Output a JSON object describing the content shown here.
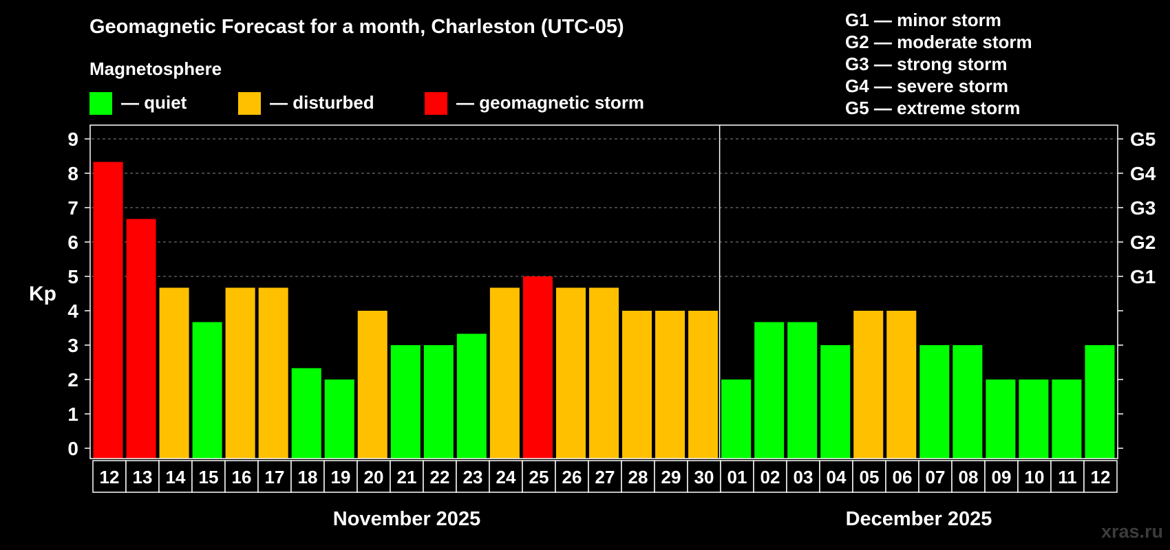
{
  "chart_data": {
    "type": "bar",
    "title": "Geomagnetic Forecast for a month, Charleston (UTC-05)",
    "legend_title": "Magnetosphere",
    "legend": [
      {
        "key": "quiet",
        "label": "— quiet",
        "color": "#00ff00"
      },
      {
        "key": "disturbed",
        "label": "— disturbed",
        "color": "#ffc000"
      },
      {
        "key": "storm",
        "label": "— geomagnetic storm",
        "color": "#ff0000"
      }
    ],
    "storm_levels": [
      {
        "level": "G1",
        "text": "G1 — minor storm",
        "kp": 5
      },
      {
        "level": "G2",
        "text": "G2 — moderate storm",
        "kp": 6
      },
      {
        "level": "G3",
        "text": "G3 — strong storm",
        "kp": 7
      },
      {
        "level": "G4",
        "text": "G4 — severe storm",
        "kp": 8
      },
      {
        "level": "G5",
        "text": "G5 — extreme storm",
        "kp": 9
      }
    ],
    "ylabel": "Kp",
    "ylim": [
      0,
      9
    ],
    "yticks": [
      0,
      1,
      2,
      3,
      4,
      5,
      6,
      7,
      8,
      9
    ],
    "grid": "dashed at Kp 5-9",
    "categories": [
      "12",
      "13",
      "14",
      "15",
      "16",
      "17",
      "18",
      "19",
      "20",
      "21",
      "22",
      "23",
      "24",
      "25",
      "26",
      "27",
      "28",
      "29",
      "30",
      "01",
      "02",
      "03",
      "04",
      "05",
      "06",
      "07",
      "08",
      "09",
      "10",
      "11",
      "12"
    ],
    "values": [
      8.33,
      6.67,
      4.67,
      3.67,
      4.67,
      4.67,
      2.33,
      2.0,
      4.0,
      3.0,
      3.0,
      3.33,
      4.67,
      5.0,
      4.67,
      4.67,
      4.0,
      4.0,
      4.0,
      2.0,
      3.67,
      3.67,
      3.0,
      4.0,
      4.0,
      3.0,
      3.0,
      2.0,
      2.0,
      2.0,
      3.0
    ],
    "status": [
      "storm",
      "storm",
      "disturbed",
      "quiet",
      "disturbed",
      "disturbed",
      "quiet",
      "quiet",
      "disturbed",
      "quiet",
      "quiet",
      "quiet",
      "disturbed",
      "storm",
      "disturbed",
      "disturbed",
      "disturbed",
      "disturbed",
      "disturbed",
      "quiet",
      "quiet",
      "quiet",
      "quiet",
      "disturbed",
      "disturbed",
      "quiet",
      "quiet",
      "quiet",
      "quiet",
      "quiet",
      "quiet"
    ],
    "months": [
      {
        "label": "November 2025",
        "first_index": 0,
        "last_index": 18
      },
      {
        "label": "December 2025",
        "first_index": 19,
        "last_index": 30
      }
    ]
  },
  "watermark": "xras.ru"
}
